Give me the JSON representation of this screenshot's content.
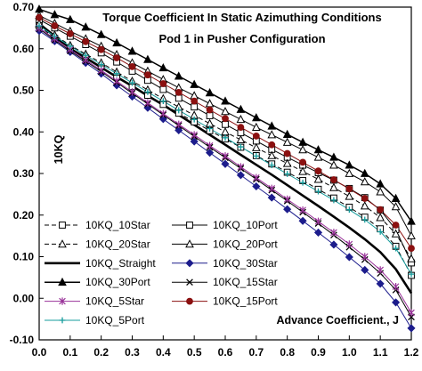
{
  "chart_data": {
    "type": "line",
    "title": "Torque Coefficient In Static Azimuthing Conditions",
    "subtitle": "Pod 1 in Pusher Configuration",
    "xlabel": "Advance Coefficient., J",
    "ylabel": "10KQ",
    "xlim": [
      0.0,
      1.2
    ],
    "ylim": [
      -0.1,
      0.7
    ],
    "xticks": [
      "0.0",
      "0.1",
      "0.2",
      "0.3",
      "0.4",
      "0.5",
      "0.6",
      "0.7",
      "0.8",
      "0.9",
      "1.0",
      "1.1",
      "1.2"
    ],
    "yticks": [
      "-0.10",
      "0.00",
      "0.10",
      "0.20",
      "0.30",
      "0.40",
      "0.50",
      "0.60",
      "0.70"
    ],
    "grid": false,
    "legend_position": "bottom-left",
    "x": [
      0.0,
      0.05,
      0.1,
      0.15,
      0.2,
      0.25,
      0.3,
      0.35,
      0.4,
      0.45,
      0.5,
      0.55,
      0.6,
      0.65,
      0.7,
      0.75,
      0.8,
      0.85,
      0.9,
      0.95,
      1.0,
      1.05,
      1.1,
      1.15,
      1.2
    ],
    "series": [
      {
        "name": "10KQ_10Star",
        "color": "#000000",
        "dash": "5,3",
        "marker": "square-open",
        "values": [
          0.655,
          0.625,
          0.6,
          0.578,
          0.556,
          0.532,
          0.509,
          0.488,
          0.466,
          0.445,
          0.424,
          0.403,
          0.383,
          0.363,
          0.343,
          0.323,
          0.303,
          0.283,
          0.262,
          0.241,
          0.219,
          0.195,
          0.167,
          0.125,
          0.055
        ]
      },
      {
        "name": "10KQ_10Port",
        "color": "#000000",
        "dash": "",
        "marker": "square-open",
        "values": [
          0.67,
          0.65,
          0.63,
          0.61,
          0.59,
          0.568,
          0.546,
          0.524,
          0.502,
          0.481,
          0.46,
          0.439,
          0.418,
          0.398,
          0.378,
          0.358,
          0.339,
          0.32,
          0.302,
          0.284,
          0.264,
          0.242,
          0.212,
          0.165,
          0.085
        ]
      },
      {
        "name": "10KQ_20Star",
        "color": "#000000",
        "dash": "5,3",
        "marker": "triangle-open",
        "values": [
          0.66,
          0.633,
          0.608,
          0.587,
          0.566,
          0.544,
          0.522,
          0.501,
          0.48,
          0.46,
          0.44,
          0.42,
          0.4,
          0.381,
          0.362,
          0.343,
          0.324,
          0.305,
          0.286,
          0.266,
          0.245,
          0.222,
          0.194,
          0.155,
          0.095
        ]
      },
      {
        "name": "10KQ_20Port",
        "color": "#000000",
        "dash": "",
        "marker": "triangle-open",
        "values": [
          0.68,
          0.661,
          0.642,
          0.624,
          0.606,
          0.586,
          0.566,
          0.546,
          0.526,
          0.506,
          0.487,
          0.468,
          0.449,
          0.43,
          0.411,
          0.393,
          0.375,
          0.357,
          0.339,
          0.32,
          0.3,
          0.28,
          0.256,
          0.22,
          0.15
        ]
      },
      {
        "name": "10KQ_Straight",
        "color": "#000000",
        "dash": "",
        "marker": "none",
        "width": 2.6,
        "values": [
          0.66,
          0.63,
          0.6,
          0.578,
          0.555,
          0.532,
          0.51,
          0.487,
          0.465,
          0.441,
          0.417,
          0.393,
          0.369,
          0.345,
          0.321,
          0.297,
          0.272,
          0.247,
          0.222,
          0.196,
          0.17,
          0.142,
          0.111,
          0.07,
          0.012
        ]
      },
      {
        "name": "10KQ_30Star",
        "color": "#1c1c8c",
        "dash": "",
        "marker": "diamond-filled",
        "values": [
          0.643,
          0.618,
          0.592,
          0.566,
          0.54,
          0.512,
          0.485,
          0.458,
          0.431,
          0.404,
          0.377,
          0.35,
          0.323,
          0.296,
          0.269,
          0.242,
          0.214,
          0.186,
          0.158,
          0.129,
          0.099,
          0.068,
          0.035,
          -0.01,
          -0.072
        ]
      },
      {
        "name": "10KQ_30Port",
        "color": "#000000",
        "dash": "",
        "marker": "triangle-filled",
        "width": 1.5,
        "values": [
          0.695,
          0.682,
          0.67,
          0.652,
          0.634,
          0.614,
          0.594,
          0.574,
          0.554,
          0.534,
          0.514,
          0.494,
          0.474,
          0.454,
          0.434,
          0.414,
          0.394,
          0.375,
          0.357,
          0.339,
          0.32,
          0.3,
          0.275,
          0.24,
          0.185
        ]
      },
      {
        "name": "10KQ_15Star",
        "color": "#000000",
        "dash": "",
        "marker": "x",
        "values": [
          0.648,
          0.621,
          0.595,
          0.57,
          0.545,
          0.519,
          0.493,
          0.467,
          0.441,
          0.415,
          0.389,
          0.363,
          0.338,
          0.312,
          0.286,
          0.26,
          0.234,
          0.207,
          0.18,
          0.152,
          0.123,
          0.093,
          0.06,
          0.02,
          -0.045
        ]
      },
      {
        "name": "10KQ_5Star",
        "color": "#993399",
        "dash": "",
        "marker": "star",
        "values": [
          0.65,
          0.624,
          0.598,
          0.573,
          0.548,
          0.522,
          0.496,
          0.47,
          0.444,
          0.418,
          0.393,
          0.367,
          0.342,
          0.316,
          0.29,
          0.264,
          0.238,
          0.212,
          0.185,
          0.158,
          0.13,
          0.1,
          0.068,
          0.028,
          -0.035
        ]
      },
      {
        "name": "10KQ_15Port",
        "color": "#8b1010",
        "dash": "",
        "marker": "circle-filled",
        "values": [
          0.675,
          0.655,
          0.636,
          0.617,
          0.598,
          0.578,
          0.557,
          0.537,
          0.516,
          0.495,
          0.474,
          0.453,
          0.432,
          0.411,
          0.39,
          0.369,
          0.348,
          0.327,
          0.306,
          0.285,
          0.263,
          0.24,
          0.213,
          0.176,
          0.12
        ]
      },
      {
        "name": "10KQ_5Port",
        "color": "#159c9c",
        "dash": "",
        "marker": "plus",
        "values": [
          0.655,
          0.63,
          0.606,
          0.584,
          0.562,
          0.54,
          0.518,
          0.496,
          0.474,
          0.452,
          0.43,
          0.408,
          0.386,
          0.364,
          0.342,
          0.32,
          0.299,
          0.278,
          0.257,
          0.236,
          0.213,
          0.189,
          0.16,
          0.12,
          0.058
        ]
      }
    ]
  }
}
